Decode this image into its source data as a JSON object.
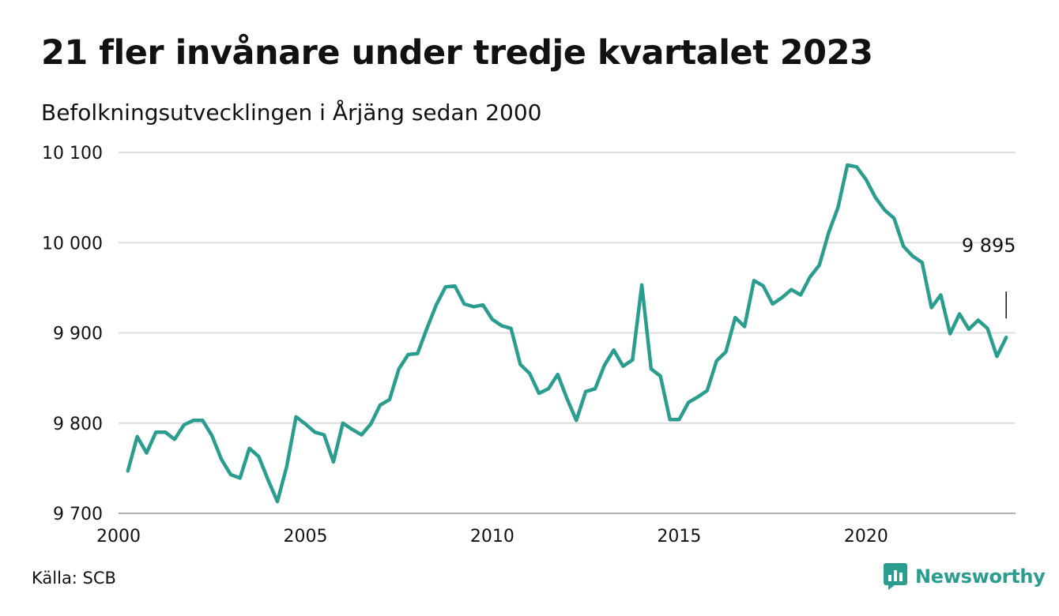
{
  "header": {
    "title": "21 fler invånare under tredje kvartalet 2023",
    "subtitle": "Befolkningsutvecklingen i Årjäng sedan 2000"
  },
  "footer": {
    "source": "Källa: SCB",
    "brand": "Newsworthy",
    "brand_color": "#2a9d8f"
  },
  "chart_data": {
    "type": "line",
    "title": "21 fler invånare under tredje kvartalet 2023",
    "subtitle": "Befolkningsutvecklingen i Årjäng sedan 2000",
    "xlabel": "",
    "ylabel": "",
    "x_ticks": [
      "2000",
      "2005",
      "2010",
      "2015",
      "2020"
    ],
    "y_ticks": [
      "9 700",
      "9 800",
      "9 900",
      "10 000",
      "10 100"
    ],
    "ylim": [
      9700,
      10100
    ],
    "xlim": [
      2000,
      2024
    ],
    "grid": true,
    "line_color": "#2a9d8f",
    "annotation": {
      "label": "9 895",
      "value": 9895,
      "x": 2023.75
    },
    "series": [
      {
        "x": [
          2000.25,
          2000.5,
          2000.75,
          2001.0,
          2001.25,
          2001.5,
          2001.75,
          2002.0,
          2002.25,
          2002.5,
          2002.75,
          2003.0,
          2003.25,
          2003.5,
          2003.75,
          2004.0,
          2004.25,
          2004.5,
          2004.75,
          2005.0,
          2005.25,
          2005.5,
          2005.75,
          2006.0,
          2006.25,
          2006.5,
          2006.75,
          2007.0,
          2007.25,
          2007.5,
          2007.75,
          2008.0,
          2008.25,
          2008.5,
          2008.75,
          2009.0,
          2009.25,
          2009.5,
          2009.75,
          2010.0,
          2010.25,
          2010.5,
          2010.75,
          2011.0,
          2011.25,
          2011.5,
          2011.75,
          2012.0,
          2012.25,
          2012.5,
          2012.75,
          2013.0,
          2013.25,
          2013.5,
          2013.75,
          2014.0,
          2014.25,
          2014.5,
          2014.75,
          2015.0,
          2015.25,
          2015.5,
          2015.75,
          2016.0,
          2016.25,
          2016.5,
          2016.75,
          2017.0,
          2017.25,
          2017.5,
          2017.75,
          2018.0,
          2018.25,
          2018.5,
          2018.75,
          2019.0,
          2019.25,
          2019.5,
          2019.75,
          2020.0,
          2020.25,
          2020.5,
          2020.75,
          2021.0,
          2021.25,
          2021.5,
          2021.75,
          2022.0,
          2022.25,
          2022.5,
          2022.75,
          2023.0,
          2023.25,
          2023.5,
          2023.75
        ],
        "values": [
          9747,
          9785,
          9767,
          9790,
          9790,
          9782,
          9798,
          9803,
          9803,
          9786,
          9760,
          9743,
          9739,
          9772,
          9763,
          9737,
          9713,
          9752,
          9807,
          9799,
          9790,
          9787,
          9757,
          9800,
          9793,
          9787,
          9799,
          9820,
          9826,
          9860,
          9876,
          9877,
          9905,
          9931,
          9951,
          9952,
          9932,
          9929,
          9931,
          9915,
          9908,
          9905,
          9865,
          9855,
          9833,
          9838,
          9854,
          9827,
          9803,
          9835,
          9838,
          9864,
          9881,
          9863,
          9870,
          9953,
          9860,
          9852,
          9804,
          9804,
          9823,
          9829,
          9836,
          9869,
          9879,
          9917,
          9907,
          9958,
          9952,
          9932,
          9939,
          9948,
          9942,
          9962,
          9975,
          10011,
          10039,
          10086,
          10084,
          10070,
          10050,
          10036,
          10027,
          9996,
          9985,
          9978,
          9928,
          9942,
          9899,
          9921,
          9904,
          9914,
          9905,
          9874,
          9895
        ]
      }
    ]
  }
}
